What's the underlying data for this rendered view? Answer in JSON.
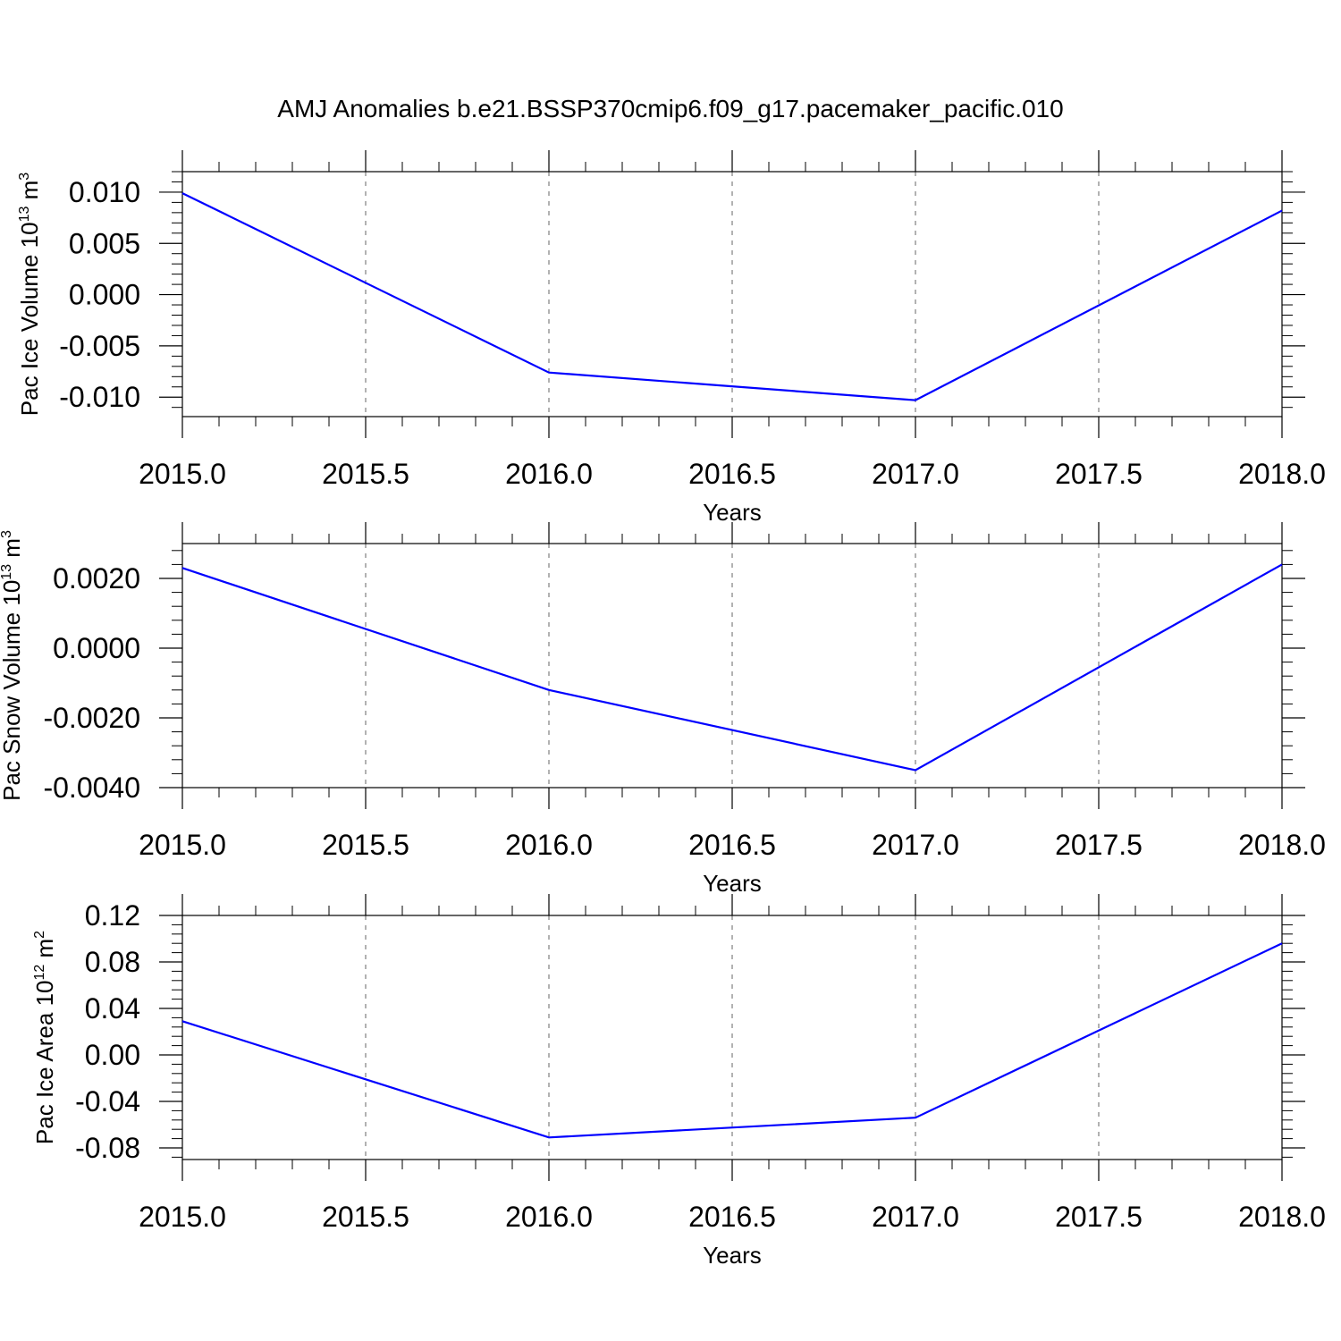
{
  "title": "AMJ Anomalies b.e21.BSSP370cmip6.f09_g17.pacemaker_pacific.010",
  "chart_data": [
    {
      "type": "line",
      "xlabel": "Years",
      "ylabel": {
        "main": "Pac Ice Volume 10",
        "exp": "13",
        "unit": " m",
        "unit_exp": "3"
      },
      "x": [
        2015,
        2016,
        2017,
        2018
      ],
      "series": [
        {
          "values": [
            0.0099,
            -0.0076,
            -0.0103,
            0.0082
          ],
          "color": "#0000ff"
        }
      ],
      "xlim": [
        2015,
        2018
      ],
      "ylim": [
        -0.0119,
        0.012
      ],
      "xticks": [
        2015.0,
        2015.5,
        2016.0,
        2016.5,
        2017.0,
        2017.5,
        2018.0
      ],
      "xtick_labels": [
        "2015.0",
        "2015.5",
        "2016.0",
        "2016.5",
        "2017.0",
        "2017.5",
        "2018.0"
      ],
      "yticks": [
        0.01,
        0.005,
        0.0,
        -0.005,
        -0.01
      ],
      "ytick_labels": [
        "0.010",
        "0.005",
        "0.000",
        "-0.005",
        "-0.010"
      ],
      "grid": "vertical dashed"
    },
    {
      "type": "line",
      "xlabel": "Years",
      "ylabel": {
        "main": "Pac Snow Volume 10",
        "exp": "13",
        "unit": " m",
        "unit_exp": "3"
      },
      "x": [
        2015,
        2016,
        2017,
        2018
      ],
      "series": [
        {
          "values": [
            0.0023,
            -0.0012,
            -0.0035,
            0.0024
          ],
          "color": "#0000ff"
        }
      ],
      "xlim": [
        2015,
        2018
      ],
      "ylim": [
        -0.004,
        0.003
      ],
      "xticks": [
        2015.0,
        2015.5,
        2016.0,
        2016.5,
        2017.0,
        2017.5,
        2018.0
      ],
      "xtick_labels": [
        "2015.0",
        "2015.5",
        "2016.0",
        "2016.5",
        "2017.0",
        "2017.5",
        "2018.0"
      ],
      "yticks": [
        0.002,
        0.0,
        -0.002,
        -0.004
      ],
      "ytick_labels": [
        "0.0020",
        "0.0000",
        "-0.0020",
        "-0.0040"
      ],
      "grid": "vertical dashed"
    },
    {
      "type": "line",
      "xlabel": "Years",
      "ylabel": {
        "main": "Pac Ice Area 10",
        "exp": "12",
        "unit": " m",
        "unit_exp": "2"
      },
      "x": [
        2015,
        2016,
        2017,
        2018
      ],
      "series": [
        {
          "values": [
            0.029,
            -0.071,
            -0.054,
            0.096
          ],
          "color": "#0000ff"
        }
      ],
      "xlim": [
        2015,
        2018
      ],
      "ylim": [
        -0.09,
        0.12
      ],
      "xticks": [
        2015.0,
        2015.5,
        2016.0,
        2016.5,
        2017.0,
        2017.5,
        2018.0
      ],
      "xtick_labels": [
        "2015.0",
        "2015.5",
        "2016.0",
        "2016.5",
        "2017.0",
        "2017.5",
        "2018.0"
      ],
      "yticks": [
        0.12,
        0.08,
        0.04,
        0.0,
        -0.04,
        -0.08
      ],
      "ytick_labels": [
        "0.12",
        "0.08",
        "0.04",
        "0.00",
        "-0.04",
        "-0.08"
      ],
      "grid": "vertical dashed"
    }
  ]
}
